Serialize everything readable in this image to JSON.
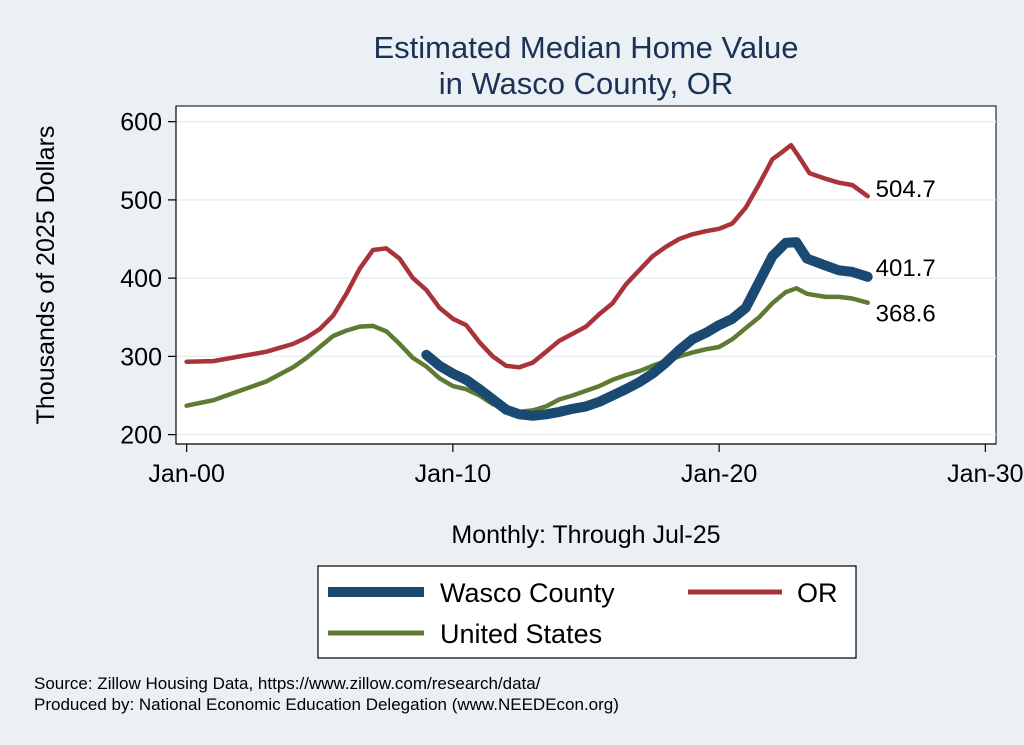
{
  "chart_data": {
    "type": "line",
    "title_lines": [
      "Estimated Median Home Value",
      "in Wasco County, OR"
    ],
    "ylabel": "Thousands of 2025 Dollars",
    "xlabel": "Monthly: Through Jul-25",
    "ylim": [
      188,
      620
    ],
    "yticks": [
      200,
      300,
      400,
      500,
      600
    ],
    "xlim": [
      -0.4,
      30.4
    ],
    "xticks": [
      0,
      10,
      20,
      30
    ],
    "xtick_labels": [
      "Jan-00",
      "Jan-10",
      "Jan-20",
      "Jan-30"
    ],
    "grid": true,
    "legend_position": "bottom",
    "series": [
      {
        "name": "Wasco County",
        "color": "#1a4a72",
        "end_label": "401.7",
        "points": [
          [
            9.0,
            302
          ],
          [
            9.5,
            288
          ],
          [
            10.0,
            278
          ],
          [
            10.5,
            270
          ],
          [
            11.0,
            258
          ],
          [
            11.5,
            245
          ],
          [
            12.0,
            232
          ],
          [
            12.5,
            226
          ],
          [
            13.0,
            224
          ],
          [
            13.5,
            226
          ],
          [
            14.0,
            229
          ],
          [
            14.5,
            233
          ],
          [
            15.0,
            236
          ],
          [
            15.5,
            242
          ],
          [
            16.0,
            250
          ],
          [
            16.5,
            258
          ],
          [
            17.0,
            267
          ],
          [
            17.5,
            278
          ],
          [
            18.0,
            292
          ],
          [
            18.5,
            308
          ],
          [
            19.0,
            322
          ],
          [
            19.5,
            330
          ],
          [
            20.0,
            340
          ],
          [
            20.5,
            348
          ],
          [
            21.0,
            362
          ],
          [
            21.5,
            395
          ],
          [
            22.0,
            428
          ],
          [
            22.5,
            445
          ],
          [
            22.9,
            446
          ],
          [
            23.3,
            425
          ],
          [
            24.0,
            416
          ],
          [
            24.5,
            410
          ],
          [
            25.0,
            408
          ],
          [
            25.58,
            401.7
          ]
        ]
      },
      {
        "name": "OR",
        "color": "#a8343a",
        "end_label": "504.7",
        "points": [
          [
            0.0,
            293
          ],
          [
            1.0,
            294
          ],
          [
            2.0,
            300
          ],
          [
            3.0,
            306
          ],
          [
            4.0,
            316
          ],
          [
            4.5,
            324
          ],
          [
            5.0,
            335
          ],
          [
            5.5,
            352
          ],
          [
            6.0,
            380
          ],
          [
            6.5,
            412
          ],
          [
            7.0,
            436
          ],
          [
            7.5,
            438
          ],
          [
            8.0,
            425
          ],
          [
            8.5,
            400
          ],
          [
            9.0,
            385
          ],
          [
            9.5,
            362
          ],
          [
            10.0,
            348
          ],
          [
            10.5,
            340
          ],
          [
            11.0,
            318
          ],
          [
            11.5,
            300
          ],
          [
            12.0,
            288
          ],
          [
            12.5,
            286
          ],
          [
            13.0,
            292
          ],
          [
            13.5,
            306
          ],
          [
            14.0,
            320
          ],
          [
            15.0,
            338
          ],
          [
            15.5,
            354
          ],
          [
            16.0,
            368
          ],
          [
            16.5,
            392
          ],
          [
            17.0,
            410
          ],
          [
            17.5,
            428
          ],
          [
            18.0,
            440
          ],
          [
            18.5,
            450
          ],
          [
            19.0,
            456
          ],
          [
            19.5,
            460
          ],
          [
            20.0,
            463
          ],
          [
            20.5,
            470
          ],
          [
            21.0,
            490
          ],
          [
            21.5,
            520
          ],
          [
            22.0,
            552
          ],
          [
            22.4,
            562
          ],
          [
            22.7,
            570
          ],
          [
            23.0,
            555
          ],
          [
            23.4,
            534
          ],
          [
            24.0,
            527
          ],
          [
            24.5,
            522
          ],
          [
            25.0,
            519
          ],
          [
            25.58,
            504.7
          ]
        ]
      },
      {
        "name": "United States",
        "color": "#5d7b32",
        "end_label": "368.6",
        "points": [
          [
            0.0,
            237
          ],
          [
            1.0,
            244
          ],
          [
            2.0,
            256
          ],
          [
            3.0,
            268
          ],
          [
            4.0,
            286
          ],
          [
            4.5,
            298
          ],
          [
            5.0,
            312
          ],
          [
            5.5,
            326
          ],
          [
            6.0,
            333
          ],
          [
            6.5,
            338
          ],
          [
            7.0,
            339
          ],
          [
            7.5,
            332
          ],
          [
            8.0,
            316
          ],
          [
            8.5,
            298
          ],
          [
            9.0,
            287
          ],
          [
            9.5,
            272
          ],
          [
            10.0,
            262
          ],
          [
            10.5,
            258
          ],
          [
            11.0,
            250
          ],
          [
            11.5,
            239
          ],
          [
            12.0,
            232
          ],
          [
            12.5,
            229
          ],
          [
            13.0,
            231
          ],
          [
            13.5,
            236
          ],
          [
            14.0,
            245
          ],
          [
            14.5,
            250
          ],
          [
            15.0,
            256
          ],
          [
            15.5,
            262
          ],
          [
            16.0,
            270
          ],
          [
            16.5,
            276
          ],
          [
            17.0,
            281
          ],
          [
            17.5,
            288
          ],
          [
            18.0,
            294
          ],
          [
            18.5,
            300
          ],
          [
            19.0,
            305
          ],
          [
            19.5,
            309
          ],
          [
            20.0,
            312
          ],
          [
            20.5,
            322
          ],
          [
            21.0,
            336
          ],
          [
            21.5,
            350
          ],
          [
            22.0,
            368
          ],
          [
            22.5,
            382
          ],
          [
            22.9,
            387
          ],
          [
            23.3,
            380
          ],
          [
            24.0,
            376
          ],
          [
            24.5,
            376
          ],
          [
            25.0,
            374
          ],
          [
            25.58,
            368.6
          ]
        ]
      }
    ],
    "legend": [
      {
        "label": "Wasco County",
        "color": "#1a4a72"
      },
      {
        "label": "OR",
        "color": "#a8343a"
      },
      {
        "label": "United States",
        "color": "#5d7b32"
      }
    ],
    "notes": [
      "Source: Zillow Housing Data, https://www.zillow.com/research/data/",
      "Produced by: National Economic Education Delegation (www.NEEDEcon.org)"
    ]
  }
}
